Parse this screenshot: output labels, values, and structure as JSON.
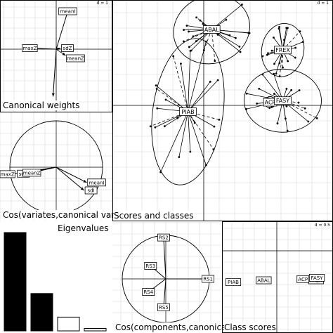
{
  "chart_data": [
    {
      "type": "scatter",
      "panel": "canonical_weights",
      "title": "Canonical weights",
      "grid_scale": "d = 1",
      "points": [
        {
          "label": "meanI",
          "x": 0.55,
          "y": 1.8
        },
        {
          "label": "maxZ",
          "x": -1.05,
          "y": 0.05
        },
        {
          "label": "sdZ",
          "x": 0.2,
          "y": 0.05
        },
        {
          "label": "meanZ",
          "x": 0.45,
          "y": -0.3
        },
        {
          "label": "sdI",
          "x": -0.15,
          "y": -2.25
        }
      ]
    },
    {
      "type": "scatter",
      "panel": "cos_variates_canonical_variates",
      "title": "Cos(variates,canonical variates)",
      "points": [
        {
          "label": "maxZ",
          "x": -0.99,
          "y": -0.15
        },
        {
          "label": "sdZ",
          "x": -0.77,
          "y": -0.14
        },
        {
          "label": "meanZ",
          "x": -0.68,
          "y": -0.15
        },
        {
          "label": "meanI",
          "x": 0.66,
          "y": -0.33
        },
        {
          "label": "sdI",
          "x": 0.6,
          "y": -0.5
        }
      ]
    },
    {
      "type": "scatter",
      "panel": "scores_and_classes",
      "title": "Scores and classes",
      "grid_scale": "d = 1",
      "classes": [
        {
          "label": "ABAL",
          "x": 0.25,
          "y": 2.4
        },
        {
          "label": "FREX",
          "x": 2.5,
          "y": 1.75
        },
        {
          "label": "ACP",
          "x": 2.1,
          "y": 0.1
        },
        {
          "label": "FASY",
          "x": 2.5,
          "y": 0.15
        },
        {
          "label": "PIAB",
          "x": -0.5,
          "y": -0.2
        }
      ]
    },
    {
      "type": "bar",
      "panel": "eigenvalues",
      "title": "Eigenvalues",
      "values": [
        1.0,
        0.38,
        0.14,
        0.025
      ]
    },
    {
      "type": "scatter",
      "panel": "cos_components_canonical",
      "title": "Cos(components,canonical variates)",
      "points": [
        {
          "label": "RS1",
          "x": 0.97,
          "y": 0.0
        },
        {
          "label": "RS2",
          "x": -0.05,
          "y": 0.95
        },
        {
          "label": "RS3",
          "x": -0.35,
          "y": 0.3
        },
        {
          "label": "RS4",
          "x": -0.4,
          "y": -0.3
        },
        {
          "label": "RS5",
          "x": -0.05,
          "y": -0.65
        }
      ]
    },
    {
      "type": "scatter",
      "panel": "class_scores",
      "title": "Class scores",
      "grid_scale": "d = 0.5",
      "points": [
        {
          "label": "ABAL",
          "x": -0.3,
          "y": 0.0
        },
        {
          "label": "FREX",
          "x": 0.9,
          "y": 0.0
        },
        {
          "label": "ACP",
          "x": 0.6,
          "y": -0.65
        },
        {
          "label": "FASY",
          "x": 0.92,
          "y": -0.62
        },
        {
          "label": "PIAB",
          "x": -1.0,
          "y": -0.72
        }
      ]
    }
  ]
}
